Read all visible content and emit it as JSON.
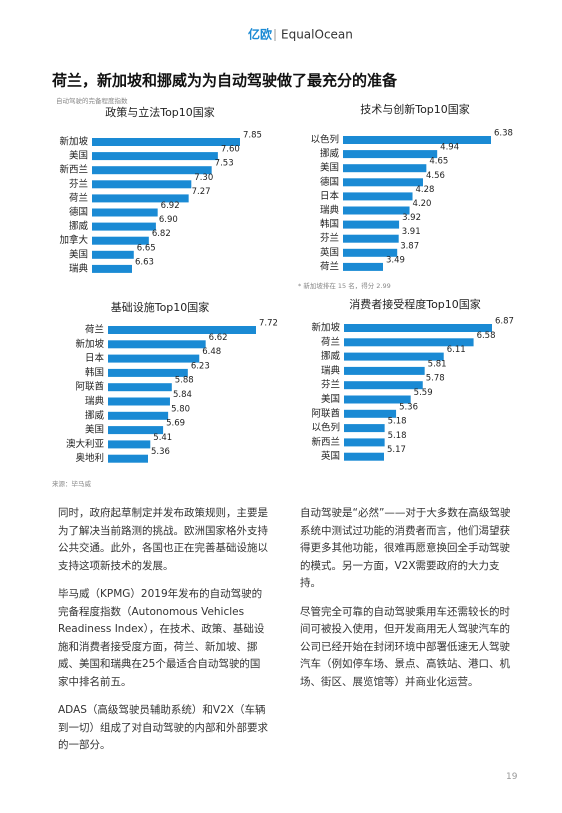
{
  "header": {
    "logo_cn": "亿欧",
    "logo_en": "EqualOcean"
  },
  "title": "荷兰，新加坡和挪威为为自动驾驶做了最充分的准备",
  "subtitle": "自动驾驶的完备程度指数",
  "chart_data": [
    {
      "type": "bar",
      "orientation": "horizontal",
      "title": "政策与立法Top10国家",
      "color": "#1a8ad4",
      "categories": [
        "新加坡",
        "美国",
        "新西兰",
        "芬兰",
        "荷兰",
        "德国",
        "挪威",
        "加拿大",
        "美国",
        "瑞典"
      ],
      "values": [
        7.85,
        7.6,
        7.53,
        7.3,
        7.27,
        6.92,
        6.9,
        6.82,
        6.65,
        6.63
      ],
      "value_labels": [
        "7.85",
        "7.60",
        "7.53",
        "7.30",
        "7.27",
        "6.92",
        "6.90",
        "6.82",
        "6.65",
        "6.63"
      ]
    },
    {
      "type": "bar",
      "orientation": "horizontal",
      "title": "技术与创新Top10国家",
      "color": "#1a8ad4",
      "categories": [
        "以色列",
        "挪威",
        "美国",
        "德国",
        "日本",
        "瑞典",
        "韩国",
        "芬兰",
        "英国",
        "荷兰"
      ],
      "values": [
        6.38,
        4.94,
        4.65,
        4.56,
        4.28,
        4.2,
        3.92,
        3.91,
        3.87,
        3.49
      ],
      "value_labels": [
        "6.38",
        "4.94",
        "4.65",
        "4.56",
        "4.28",
        "4.20",
        "3.92",
        "3.91",
        "3.87",
        "3.49"
      ],
      "note": "* 新加坡排在 15 名，得分 2.99"
    },
    {
      "type": "bar",
      "orientation": "horizontal",
      "title": "基础设施Top10国家",
      "color": "#1a8ad4",
      "categories": [
        "荷兰",
        "新加坡",
        "日本",
        "韩国",
        "阿联酋",
        "瑞典",
        "挪威",
        "美国",
        "澳大利亚",
        "奥地利"
      ],
      "values": [
        7.72,
        6.62,
        6.48,
        6.23,
        5.88,
        5.84,
        5.8,
        5.69,
        5.41,
        5.36
      ],
      "value_labels": [
        "7.72",
        "6.62",
        "6.48",
        "6.23",
        "5.88",
        "5.84",
        "5.80",
        "5.69",
        "5.41",
        "5.36"
      ]
    },
    {
      "type": "bar",
      "orientation": "horizontal",
      "title": "消费者接受程度Top10国家",
      "color": "#1a8ad4",
      "categories": [
        "新加坡",
        "荷兰",
        "挪威",
        "瑞典",
        "芬兰",
        "美国",
        "阿联酋",
        "以色列",
        "新西兰",
        "英国"
      ],
      "values": [
        6.87,
        6.58,
        6.11,
        5.81,
        5.78,
        5.59,
        5.36,
        5.18,
        5.18,
        5.17
      ],
      "value_labels": [
        "6.87",
        "6.58",
        "6.11",
        "5.81",
        "5.78",
        "5.59",
        "5.36",
        "5.18",
        "5.18",
        "5.17"
      ]
    }
  ],
  "source": "来源：毕马威",
  "body": {
    "left": [
      "同时，政府起草制定并发布政策规则，主要是为了解决当前路测的挑战。欧洲国家格外支持公共交通。此外，各国也正在完善基础设施以支持这项新技术的发展。",
      "毕马威（KPMG）2019年发布的自动驾驶的完备程度指数（Autonomous Vehicles Readiness Index），在技术、政策、基础设施和消费者接受度方面，荷兰、新加坡、挪威、美国和瑞典在25个最适合自动驾驶的国家中排名前五。",
      "ADAS（高级驾驶员辅助系统）和V2X（车辆到一切）组成了对自动驾驶的内部和外部要求的一部分。"
    ],
    "right": [
      "自动驾驶是“必然”——对于大多数在高级驾驶系统中测试过功能的消费者而言，他们渴望获得更多其他功能，很难再愿意换回全手动驾驶的模式。另一方面，V2X需要政府的大力支持。",
      "尽管完全可靠的自动驾驶乘用车还需较长的时间可被投入使用，但开发商用无人驾驶汽车的公司已经开始在封闭环境中部署低速无人驾驶汽车（例如停车场、景点、高铁站、港口、机场、街区、展览馆等）并商业化运营。"
    ]
  },
  "page_number": "19"
}
